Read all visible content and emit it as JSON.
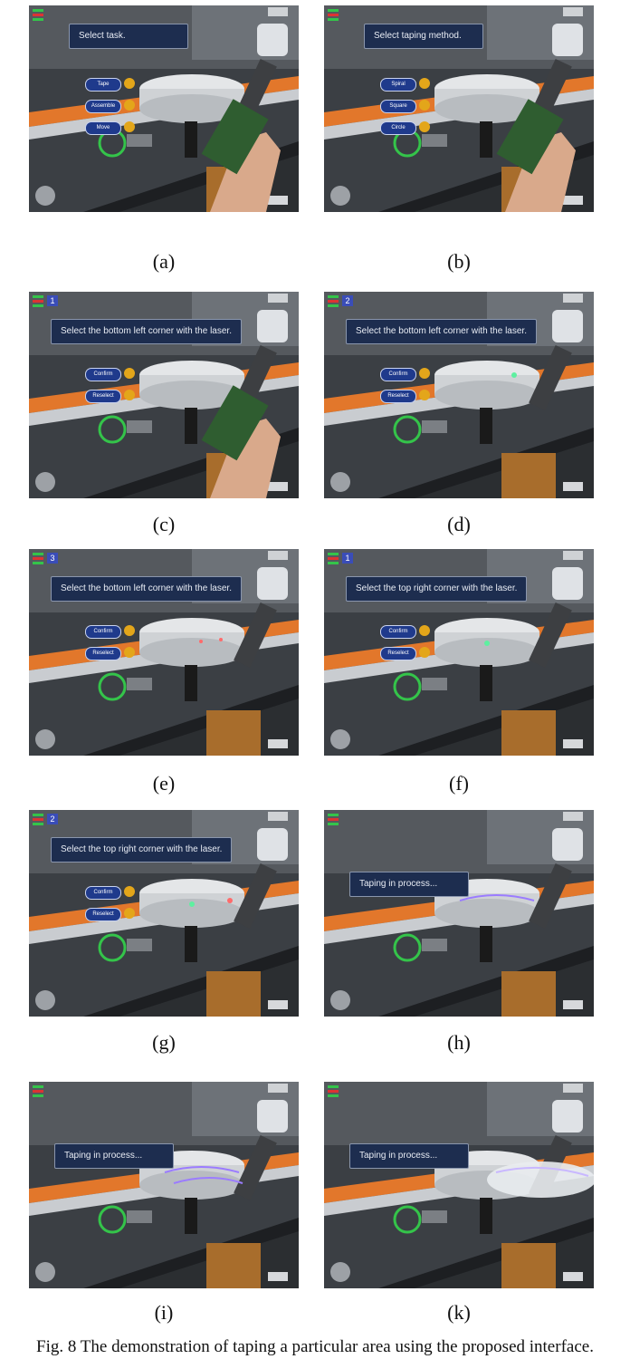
{
  "panels": [
    {
      "label": "(a)",
      "hud": "Select task.",
      "menu": [
        "Tape",
        "Assemble",
        "Move"
      ]
    },
    {
      "label": "(b)",
      "hud": "Select taping method.",
      "menu": [
        "Spiral",
        "Square",
        "Circle"
      ]
    },
    {
      "label": "(c)",
      "hud": "Select the bottom left corner with the laser.",
      "step": "1",
      "menu": [
        "Confirm",
        "Reselect"
      ]
    },
    {
      "label": "(d)",
      "hud": "Select the bottom left corner with the laser.",
      "step": "2",
      "menu": [
        "Confirm",
        "Reselect"
      ]
    },
    {
      "label": "(e)",
      "hud": "Select the bottom left corner with the laser.",
      "step": "3",
      "menu": [
        "Confirm",
        "Reselect"
      ]
    },
    {
      "label": "(f)",
      "hud": "Select the top right corner with the laser.",
      "step": "1",
      "menu": [
        "Confirm",
        "Reselect"
      ]
    },
    {
      "label": "(g)",
      "hud": "Select the top right corner with the laser.",
      "step": "2",
      "menu": [
        "Confirm",
        "Reselect"
      ]
    },
    {
      "label": "(h)",
      "hud": "Taping in process...",
      "menu": []
    },
    {
      "label": "(i)",
      "hud": "Taping in process...",
      "menu": []
    },
    {
      "label": "(k)",
      "hud": "Taping in process...",
      "menu": []
    }
  ],
  "caption": "Fig. 8 The demonstration of taping a particular area using the proposed interface."
}
